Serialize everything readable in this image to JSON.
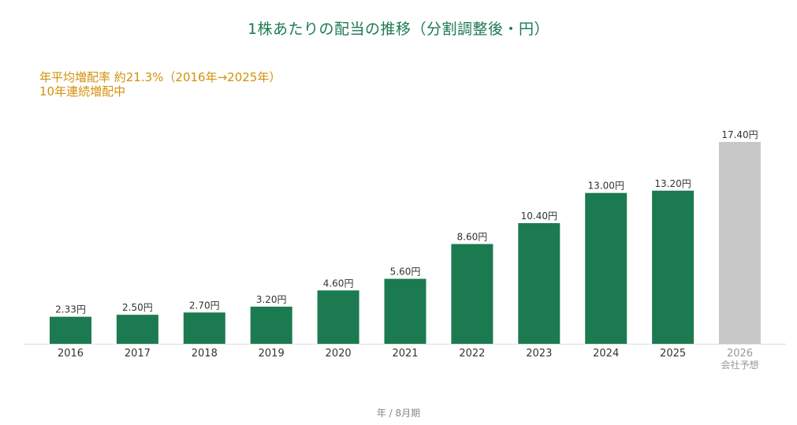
{
  "chart_data": {
    "type": "bar",
    "title": "1株あたりの配当の推移（分割調整後・円）",
    "annotations": [
      "年平均増配率 約21.3%（2016年→2025年）",
      "10年連続増配中"
    ],
    "categories": [
      "2016",
      "2017",
      "2018",
      "2019",
      "2020",
      "2021",
      "2022",
      "2023",
      "2024",
      "2025",
      "2026"
    ],
    "category_sublabels": [
      "",
      "",
      "",
      "",
      "",
      "",
      "",
      "",
      "",
      "",
      "会社予想"
    ],
    "values": [
      2.33,
      2.5,
      2.7,
      3.2,
      4.6,
      5.6,
      8.6,
      10.4,
      13.0,
      13.2,
      17.4
    ],
    "data_labels": [
      "2.33円",
      "2.50円",
      "2.70円",
      "3.20円",
      "4.60円",
      "5.60円",
      "8.60円",
      "10.40円",
      "13.00円",
      "13.20円",
      "17.40円"
    ],
    "forecast": [
      false,
      false,
      false,
      false,
      false,
      false,
      false,
      false,
      false,
      false,
      true
    ],
    "xlabel": "年 / 8月期",
    "ylabel": "",
    "ylim": [
      0,
      17.4
    ],
    "grid": false,
    "legend": "none",
    "colors": {
      "actual": "#1b7a50",
      "forecast": "#c8c8c8",
      "title": "#1b7a50",
      "annotation": "#d4900a",
      "tick": "#333333",
      "forecast_tick": "#999999",
      "axis": "#dddddd"
    }
  }
}
